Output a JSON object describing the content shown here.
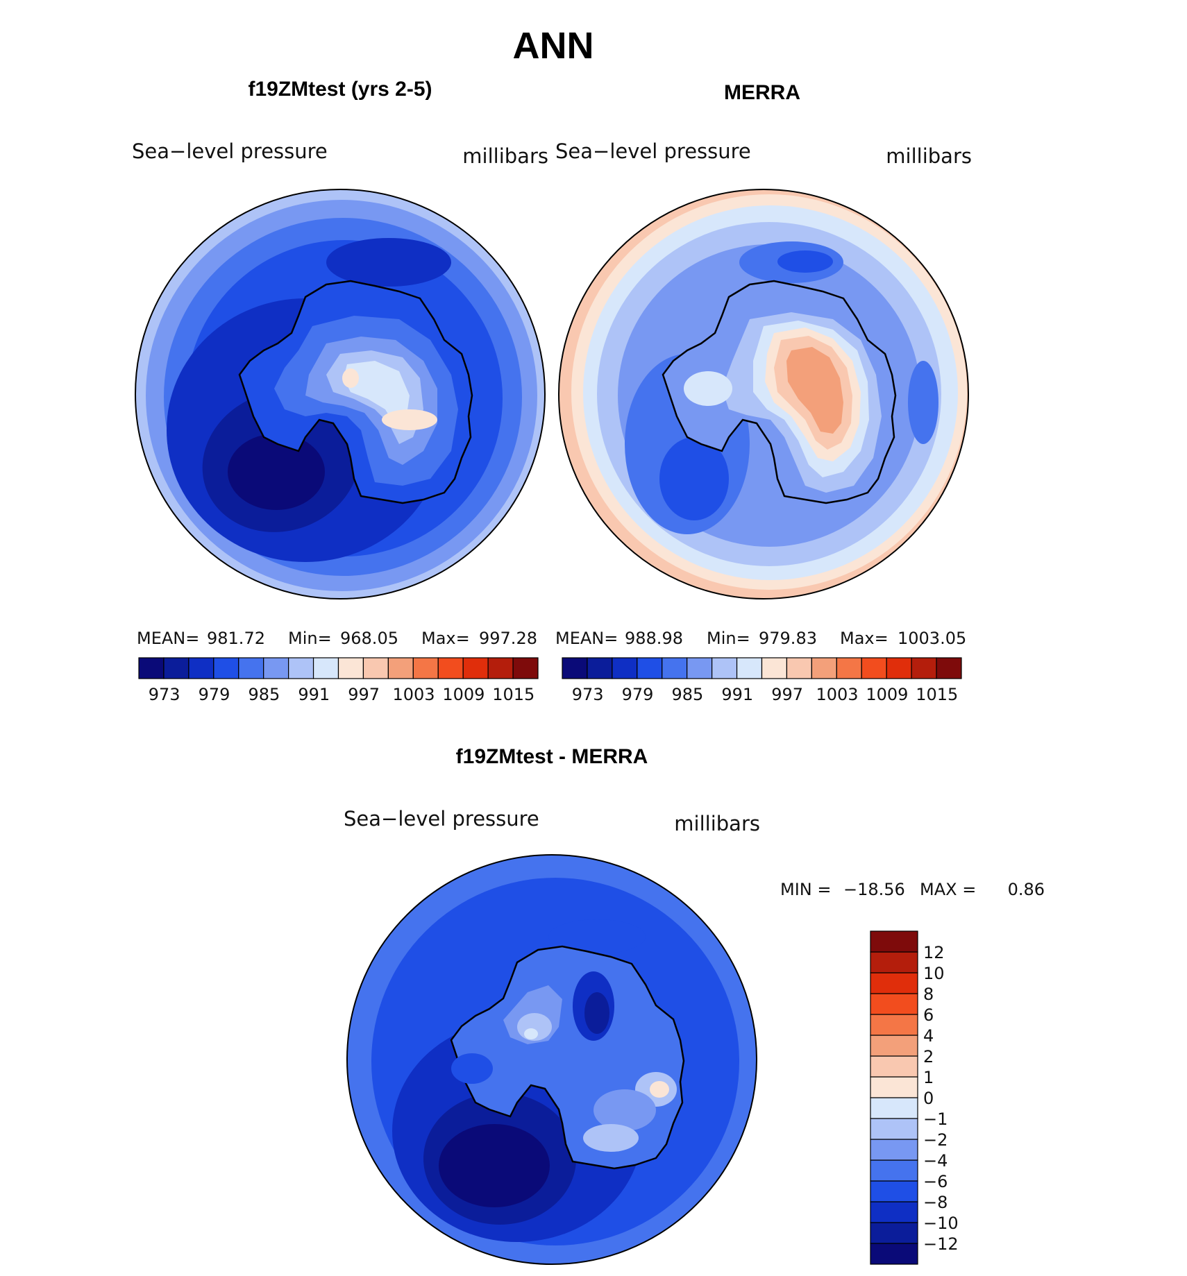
{
  "title": "ANN",
  "panels": [
    {
      "heading": "f19ZMtest (yrs 2-5)",
      "field_label": "Sea−level pressure",
      "units_label": "millibars",
      "stats": {
        "mean_label": "MEAN=",
        "mean": "981.72",
        "min_label": "Min=",
        "min": "968.05",
        "max_label": "Max=",
        "max": "997.28"
      },
      "scenario": "model"
    },
    {
      "heading": "MERRA",
      "field_label": "Sea−level pressure",
      "units_label": "millibars",
      "stats": {
        "mean_label": "MEAN=",
        "mean": "988.98",
        "min_label": "Min=",
        "min": "979.83",
        "max_label": "Max=",
        "max": "1003.05"
      },
      "scenario": "obs"
    },
    {
      "heading": "f19ZMtest - MERRA",
      "field_label": "Sea−level pressure",
      "units_label": "millibars",
      "stats": {
        "min_label": "MIN =",
        "min": "−18.56",
        "max_label": "MAX =",
        "max": "0.86"
      },
      "scenario": "diff"
    }
  ],
  "abs_colorbar": {
    "colors": [
      "#0a0a78",
      "#0b1d9a",
      "#0f2fc4",
      "#1f4fe6",
      "#4573ee",
      "#7898f2",
      "#aec3f7",
      "#d7e7fb",
      "#fbe5d6",
      "#f9c8b0",
      "#f3a07a",
      "#f47646",
      "#f24d1e",
      "#e02e0b",
      "#b41e0c",
      "#7e0b0b"
    ],
    "labels": [
      "973",
      "979",
      "985",
      "991",
      "997",
      "1003",
      "1009",
      "1015"
    ]
  },
  "diff_colorbar": {
    "colors": [
      "#0a0a78",
      "#0b1d9a",
      "#0f2fc4",
      "#1f4fe6",
      "#4573ee",
      "#7898f2",
      "#aec3f7",
      "#d7e7fb",
      "#fbe5d6",
      "#f9c8b0",
      "#f3a07a",
      "#f47646",
      "#f24d1e",
      "#e02e0b",
      "#b41e0c",
      "#7e0b0b"
    ],
    "labels": [
      "−12",
      "−10",
      "−8",
      "−6",
      "−4",
      "−2",
      "−1",
      "0",
      "1",
      "2",
      "4",
      "6",
      "8",
      "10",
      "12"
    ]
  }
}
